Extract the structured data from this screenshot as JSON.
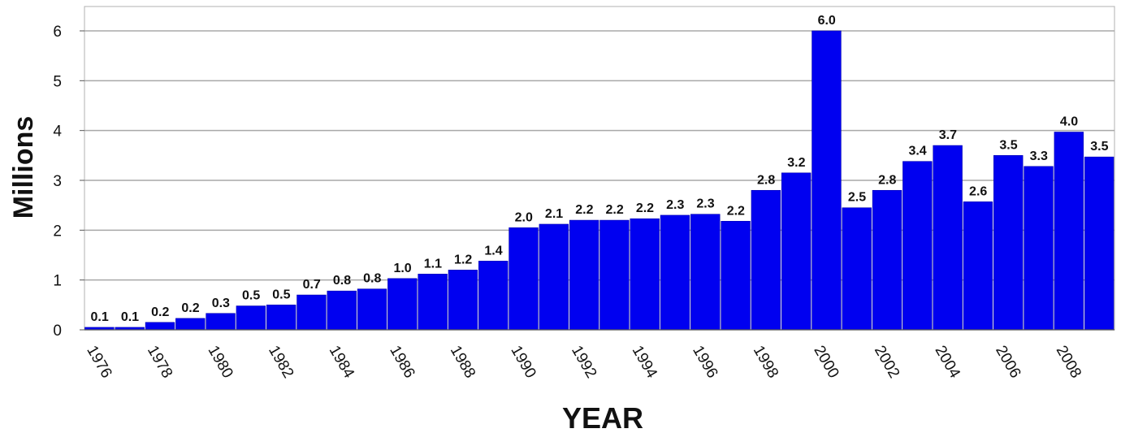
{
  "chart_data": {
    "type": "bar",
    "title": "",
    "xlabel": "YEAR",
    "ylabel": "Millions",
    "ylim": [
      0,
      6
    ],
    "yticks": [
      0,
      1,
      2,
      3,
      4,
      5,
      6
    ],
    "grid": true,
    "bar_color": "#0000f0",
    "categories": [
      "1976",
      "1977",
      "1978",
      "1979",
      "1980",
      "1981",
      "1982",
      "1983",
      "1984",
      "1985",
      "1986",
      "1987",
      "1988",
      "1989",
      "1990",
      "1991",
      "1992",
      "1993",
      "1994",
      "1995",
      "1996",
      "1997",
      "1998",
      "1999",
      "2000",
      "2001",
      "2002",
      "2003",
      "2004",
      "2005",
      "2006",
      "2007",
      "2008",
      "2009"
    ],
    "x_tick_labels": [
      "1976",
      "1978",
      "1980",
      "1982",
      "1984",
      "1986",
      "1988",
      "1990",
      "1992",
      "1994",
      "1996",
      "1998",
      "2000",
      "2002",
      "2004",
      "2006",
      "2008"
    ],
    "values": [
      0.05,
      0.05,
      0.15,
      0.23,
      0.33,
      0.48,
      0.5,
      0.7,
      0.78,
      0.82,
      1.03,
      1.12,
      1.2,
      1.38,
      2.05,
      2.12,
      2.2,
      2.2,
      2.23,
      2.3,
      2.32,
      2.18,
      2.8,
      3.15,
      6.0,
      2.45,
      2.8,
      3.38,
      3.7,
      2.57,
      3.5,
      3.28,
      3.97,
      3.47
    ],
    "data_labels": [
      "0.1",
      "0.1",
      "0.2",
      "0.2",
      "0.3",
      "0.5",
      "0.5",
      "0.7",
      "0.8",
      "0.8",
      "1.0",
      "1.1",
      "1.2",
      "1.4",
      "2.0",
      "2.1",
      "2.2",
      "2.2",
      "2.2",
      "2.3",
      "2.3",
      "2.2",
      "2.8",
      "3.2",
      "6.0",
      "2.5",
      "2.8",
      "3.4",
      "3.7",
      "2.6",
      "3.5",
      "3.3",
      "4.0",
      "3.5"
    ]
  }
}
